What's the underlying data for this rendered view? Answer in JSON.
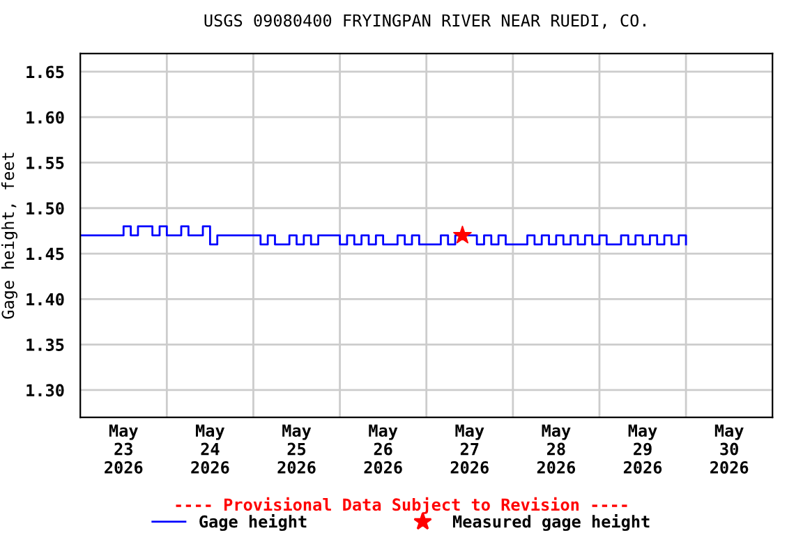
{
  "chart_data": {
    "type": "step",
    "title": "USGS 09080400 FRYINGPAN RIVER NEAR RUEDI, CO.",
    "ylabel": "Gage height, feet",
    "annotations": [
      "---- Provisional Data Subject to Revision ----"
    ],
    "xlim": [
      "2026-05-23T00:00",
      "2026-05-31T00:00"
    ],
    "xticks": [
      {
        "value": "2026-05-23T12:00",
        "label": "May\n23\n2026"
      },
      {
        "value": "2026-05-24T12:00",
        "label": "May\n24\n2026"
      },
      {
        "value": "2026-05-25T12:00",
        "label": "May\n25\n2026"
      },
      {
        "value": "2026-05-26T12:00",
        "label": "May\n26\n2026"
      },
      {
        "value": "2026-05-27T12:00",
        "label": "May\n27\n2026"
      },
      {
        "value": "2026-05-28T12:00",
        "label": "May\n28\n2026"
      },
      {
        "value": "2026-05-29T12:00",
        "label": "May\n29\n2026"
      },
      {
        "value": "2026-05-30T12:00",
        "label": "May\n30\n2026"
      },
      {
        "value": "2026-05-24T00:00",
        "label": null
      },
      {
        "value": "2026-05-25T00:00",
        "label": null
      },
      {
        "value": "2026-05-26T00:00",
        "label": null
      },
      {
        "value": "2026-05-27T00:00",
        "label": null
      },
      {
        "value": "2026-05-28T00:00",
        "label": null
      },
      {
        "value": "2026-05-29T00:00",
        "label": null
      },
      {
        "value": "2026-05-30T00:00",
        "label": null
      }
    ],
    "ylim": [
      1.27,
      1.67
    ],
    "yticks": [
      {
        "value": 1.3,
        "label": "1.30"
      },
      1.35,
      {
        "value": 1.4,
        "label": "1.40"
      },
      1.45,
      {
        "value": 1.5,
        "label": "1.50"
      },
      1.55,
      {
        "value": 1.6,
        "label": "1.60"
      },
      1.65
    ],
    "grid": true,
    "legend": "bottom",
    "series": [
      {
        "name": "Gage height",
        "color": "#0000ff",
        "marker": "none",
        "line_style": "solid",
        "x": [
          "2026-05-23T00:00",
          "2026-05-23T02:00",
          "2026-05-23T04:00",
          "2026-05-23T06:00",
          "2026-05-23T08:00",
          "2026-05-23T10:00",
          "2026-05-23T12:00",
          "2026-05-23T14:00",
          "2026-05-23T16:00",
          "2026-05-23T18:00",
          "2026-05-23T20:00",
          "2026-05-23T22:00",
          "2026-05-24T00:00",
          "2026-05-24T02:00",
          "2026-05-24T04:00",
          "2026-05-24T06:00",
          "2026-05-24T08:00",
          "2026-05-24T10:00",
          "2026-05-24T12:00",
          "2026-05-24T14:00",
          "2026-05-24T16:00",
          "2026-05-24T18:00",
          "2026-05-24T20:00",
          "2026-05-24T22:00",
          "2026-05-25T00:00",
          "2026-05-25T02:00",
          "2026-05-25T04:00",
          "2026-05-25T06:00",
          "2026-05-25T08:00",
          "2026-05-25T10:00",
          "2026-05-25T12:00",
          "2026-05-25T14:00",
          "2026-05-25T16:00",
          "2026-05-25T18:00",
          "2026-05-25T20:00",
          "2026-05-25T22:00",
          "2026-05-26T00:00",
          "2026-05-26T02:00",
          "2026-05-26T04:00",
          "2026-05-26T06:00",
          "2026-05-26T08:00",
          "2026-05-26T10:00",
          "2026-05-26T12:00",
          "2026-05-26T14:00",
          "2026-05-26T16:00",
          "2026-05-26T18:00",
          "2026-05-26T20:00",
          "2026-05-26T22:00",
          "2026-05-27T00:00",
          "2026-05-27T02:00",
          "2026-05-27T04:00",
          "2026-05-27T06:00",
          "2026-05-27T08:00",
          "2026-05-27T10:00",
          "2026-05-27T12:00",
          "2026-05-27T14:00",
          "2026-05-27T16:00",
          "2026-05-27T18:00",
          "2026-05-27T20:00",
          "2026-05-27T22:00",
          "2026-05-28T00:00",
          "2026-05-28T02:00",
          "2026-05-28T04:00",
          "2026-05-28T06:00",
          "2026-05-28T08:00",
          "2026-05-28T10:00",
          "2026-05-28T12:00",
          "2026-05-28T14:00",
          "2026-05-28T16:00",
          "2026-05-28T18:00",
          "2026-05-28T20:00",
          "2026-05-28T22:00",
          "2026-05-29T00:00",
          "2026-05-29T02:00",
          "2026-05-29T04:00",
          "2026-05-29T06:00",
          "2026-05-29T08:00",
          "2026-05-29T10:00",
          "2026-05-29T12:00",
          "2026-05-29T14:00",
          "2026-05-29T16:00",
          "2026-05-29T18:00",
          "2026-05-29T20:00",
          "2026-05-29T22:00",
          "2026-05-30T00:00"
        ],
        "values": [
          1.47,
          1.47,
          1.47,
          1.47,
          1.47,
          1.47,
          1.48,
          1.47,
          1.48,
          1.48,
          1.47,
          1.48,
          1.47,
          1.47,
          1.48,
          1.47,
          1.47,
          1.48,
          1.46,
          1.47,
          1.47,
          1.47,
          1.47,
          1.47,
          1.47,
          1.46,
          1.47,
          1.46,
          1.46,
          1.47,
          1.46,
          1.47,
          1.46,
          1.47,
          1.47,
          1.47,
          1.46,
          1.47,
          1.46,
          1.47,
          1.46,
          1.47,
          1.46,
          1.46,
          1.47,
          1.46,
          1.47,
          1.46,
          1.46,
          1.46,
          1.47,
          1.46,
          1.47,
          1.47,
          1.47,
          1.46,
          1.47,
          1.46,
          1.47,
          1.46,
          1.46,
          1.46,
          1.47,
          1.46,
          1.47,
          1.46,
          1.47,
          1.46,
          1.47,
          1.46,
          1.47,
          1.46,
          1.47,
          1.46,
          1.46,
          1.47,
          1.46,
          1.47,
          1.46,
          1.47,
          1.46,
          1.47,
          1.46,
          1.47,
          1.46
        ]
      },
      {
        "name": "Measured gage height",
        "type": "scatter",
        "color": "#ff0000",
        "marker": "star",
        "x": [
          "2026-05-27T10:00"
        ],
        "values": [
          1.47
        ]
      }
    ]
  }
}
